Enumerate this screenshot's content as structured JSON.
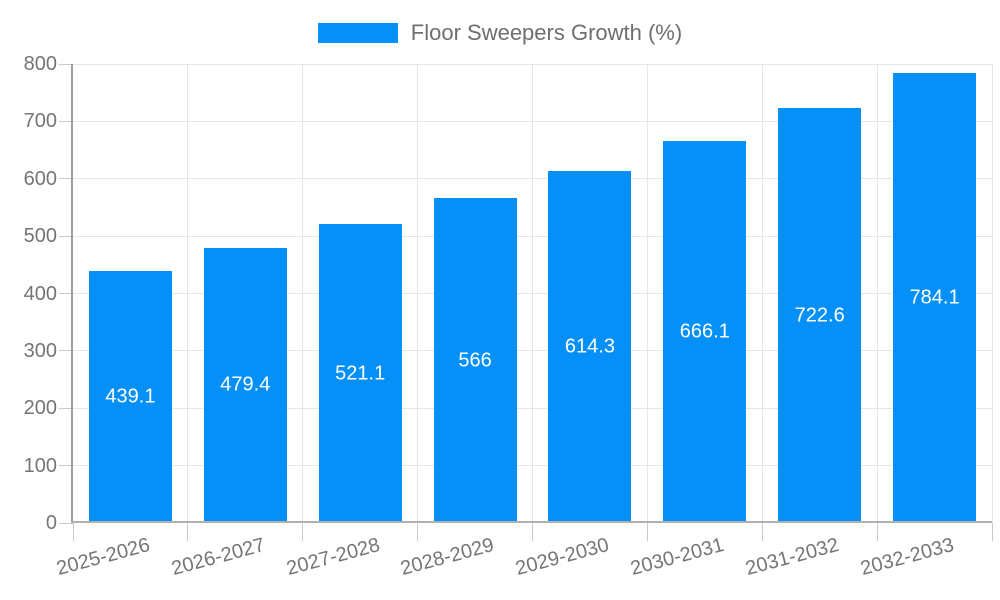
{
  "chart_data": {
    "type": "bar",
    "title": "",
    "categories": [
      "2025-2026",
      "2026-2027",
      "2027-2028",
      "2028-2029",
      "2029-2030",
      "2030-2031",
      "2031-2032",
      "2032-2033"
    ],
    "series": [
      {
        "name": "Floor Sweepers Growth (%)",
        "values": [
          439.1,
          479.4,
          521.1,
          566,
          614.3,
          666.1,
          722.6,
          784.1
        ]
      }
    ],
    "value_labels": [
      "439.1",
      "479.4",
      "521.1",
      "566",
      "614.3",
      "666.1",
      "722.6",
      "784.1"
    ],
    "xlabel": "",
    "ylabel": "",
    "ylim": [
      0,
      800
    ],
    "y_ticks": [
      0,
      100,
      200,
      300,
      400,
      500,
      600,
      700,
      800
    ],
    "y_tick_labels": [
      "0",
      "100",
      "200",
      "300",
      "400",
      "500",
      "600",
      "700",
      "800"
    ],
    "grid": true,
    "legend_position": "top"
  },
  "legend": {
    "label": "Floor Sweepers Growth (%)"
  },
  "colors": {
    "bar": "#0590f8",
    "grid": "#e6e6e6",
    "axis_left": "#9e9e9e",
    "axis_bottom": "#b0b0b0",
    "tick": "#c9c9c9",
    "tick_text": "#757575",
    "legend_text": "#6f6f6f",
    "value_text": "#ffffff",
    "background": "#ffffff"
  }
}
